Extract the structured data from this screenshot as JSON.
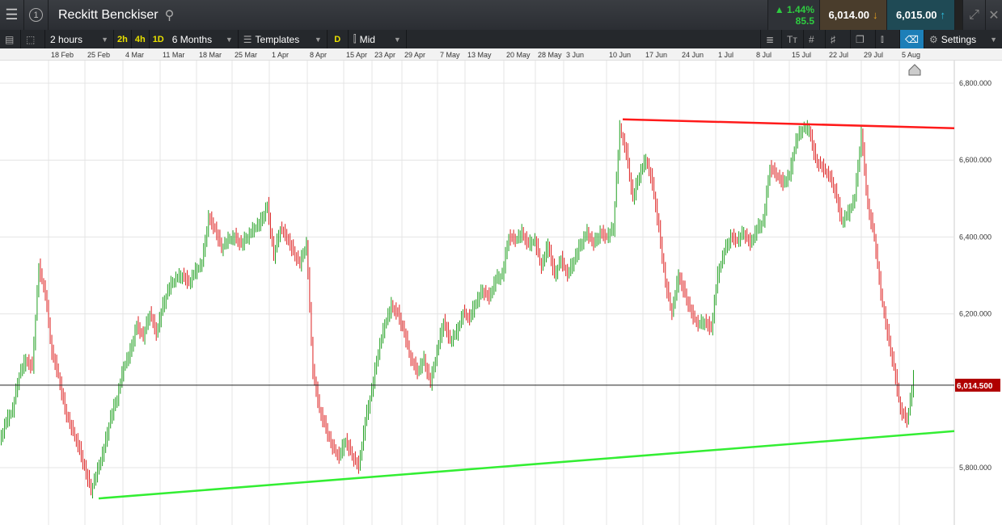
{
  "header": {
    "title": "Reckitt Benckiser",
    "change_pct": "1.44%",
    "change_abs": "85.5",
    "sell": "6,014.00",
    "buy": "6,015.00",
    "num_badge": "1"
  },
  "toolbar": {
    "interval": "2 hours",
    "quick": [
      "2h",
      "4h",
      "1D"
    ],
    "range": "6 Months",
    "templates": "Templates",
    "d": "D",
    "price_type": "Mid",
    "settings": "Settings"
  },
  "colors": {
    "up": "#22a022",
    "down": "#dd2020",
    "resistance": "#ff1a1a",
    "support": "#33ee33",
    "price_tag": "#b00000"
  },
  "chart_data": {
    "type": "candlestick",
    "x_ticks": [
      "18 Feb",
      "25 Feb",
      "4 Mar",
      "11 Mar",
      "18 Mar",
      "25 Mar",
      "1 Apr",
      "8 Apr",
      "15 Apr",
      "23 Apr",
      "29 Apr",
      "7 May",
      "13 May",
      "20 May",
      "28 May",
      "3 Jun",
      "10 Jun",
      "17 Jun",
      "24 Jun",
      "1 Jul",
      "8 Jul",
      "15 Jul",
      "22 Jul",
      "29 Jul",
      "5 Aug"
    ],
    "y_ticks": [
      "6,800.000",
      "6,600.000",
      "6,400.000",
      "6,200.000",
      "5,800.000"
    ],
    "y_tick_values": [
      6800,
      6600,
      6400,
      6200,
      5800
    ],
    "ylim": [
      5660,
      6860
    ],
    "current_price": 6014.5,
    "current_price_label": "6,014.500",
    "closes": [
      5870,
      5920,
      5950,
      6040,
      6080,
      6060,
      6320,
      6250,
      6100,
      6040,
      5950,
      5900,
      5860,
      5800,
      5740,
      5790,
      5850,
      5930,
      5980,
      6060,
      6100,
      6170,
      6140,
      6200,
      6150,
      6220,
      6270,
      6290,
      6300,
      6280,
      6310,
      6330,
      6450,
      6420,
      6370,
      6390,
      6400,
      6380,
      6400,
      6420,
      6440,
      6480,
      6350,
      6420,
      6400,
      6360,
      6330,
      6380,
      6050,
      5950,
      5900,
      5850,
      5830,
      5870,
      5830,
      5800,
      5920,
      6000,
      6100,
      6170,
      6220,
      6200,
      6150,
      6080,
      6050,
      6080,
      6020,
      6100,
      6180,
      6130,
      6150,
      6200,
      6190,
      6230,
      6260,
      6240,
      6290,
      6300,
      6400,
      6390,
      6410,
      6380,
      6390,
      6320,
      6380,
      6300,
      6340,
      6300,
      6340,
      6380,
      6410,
      6380,
      6410,
      6400,
      6420,
      6680,
      6620,
      6500,
      6560,
      6600,
      6540,
      6420,
      6280,
      6200,
      6300,
      6250,
      6200,
      6170,
      6180,
      6160,
      6300,
      6360,
      6400,
      6390,
      6410,
      6380,
      6420,
      6440,
      6580,
      6560,
      6540,
      6560,
      6650,
      6680,
      6680,
      6600,
      6580,
      6560,
      6520,
      6440,
      6460,
      6500,
      6670,
      6480,
      6400,
      6250,
      6150,
      6060,
      5950,
      5920,
      6030
    ],
    "trendlines": [
      {
        "kind": "resistance",
        "start": "10 Jun",
        "start_price": 6706,
        "end_price": 6683
      },
      {
        "kind": "support",
        "start": "25 Feb",
        "start_price": 5720,
        "end_price": 5895
      }
    ]
  }
}
